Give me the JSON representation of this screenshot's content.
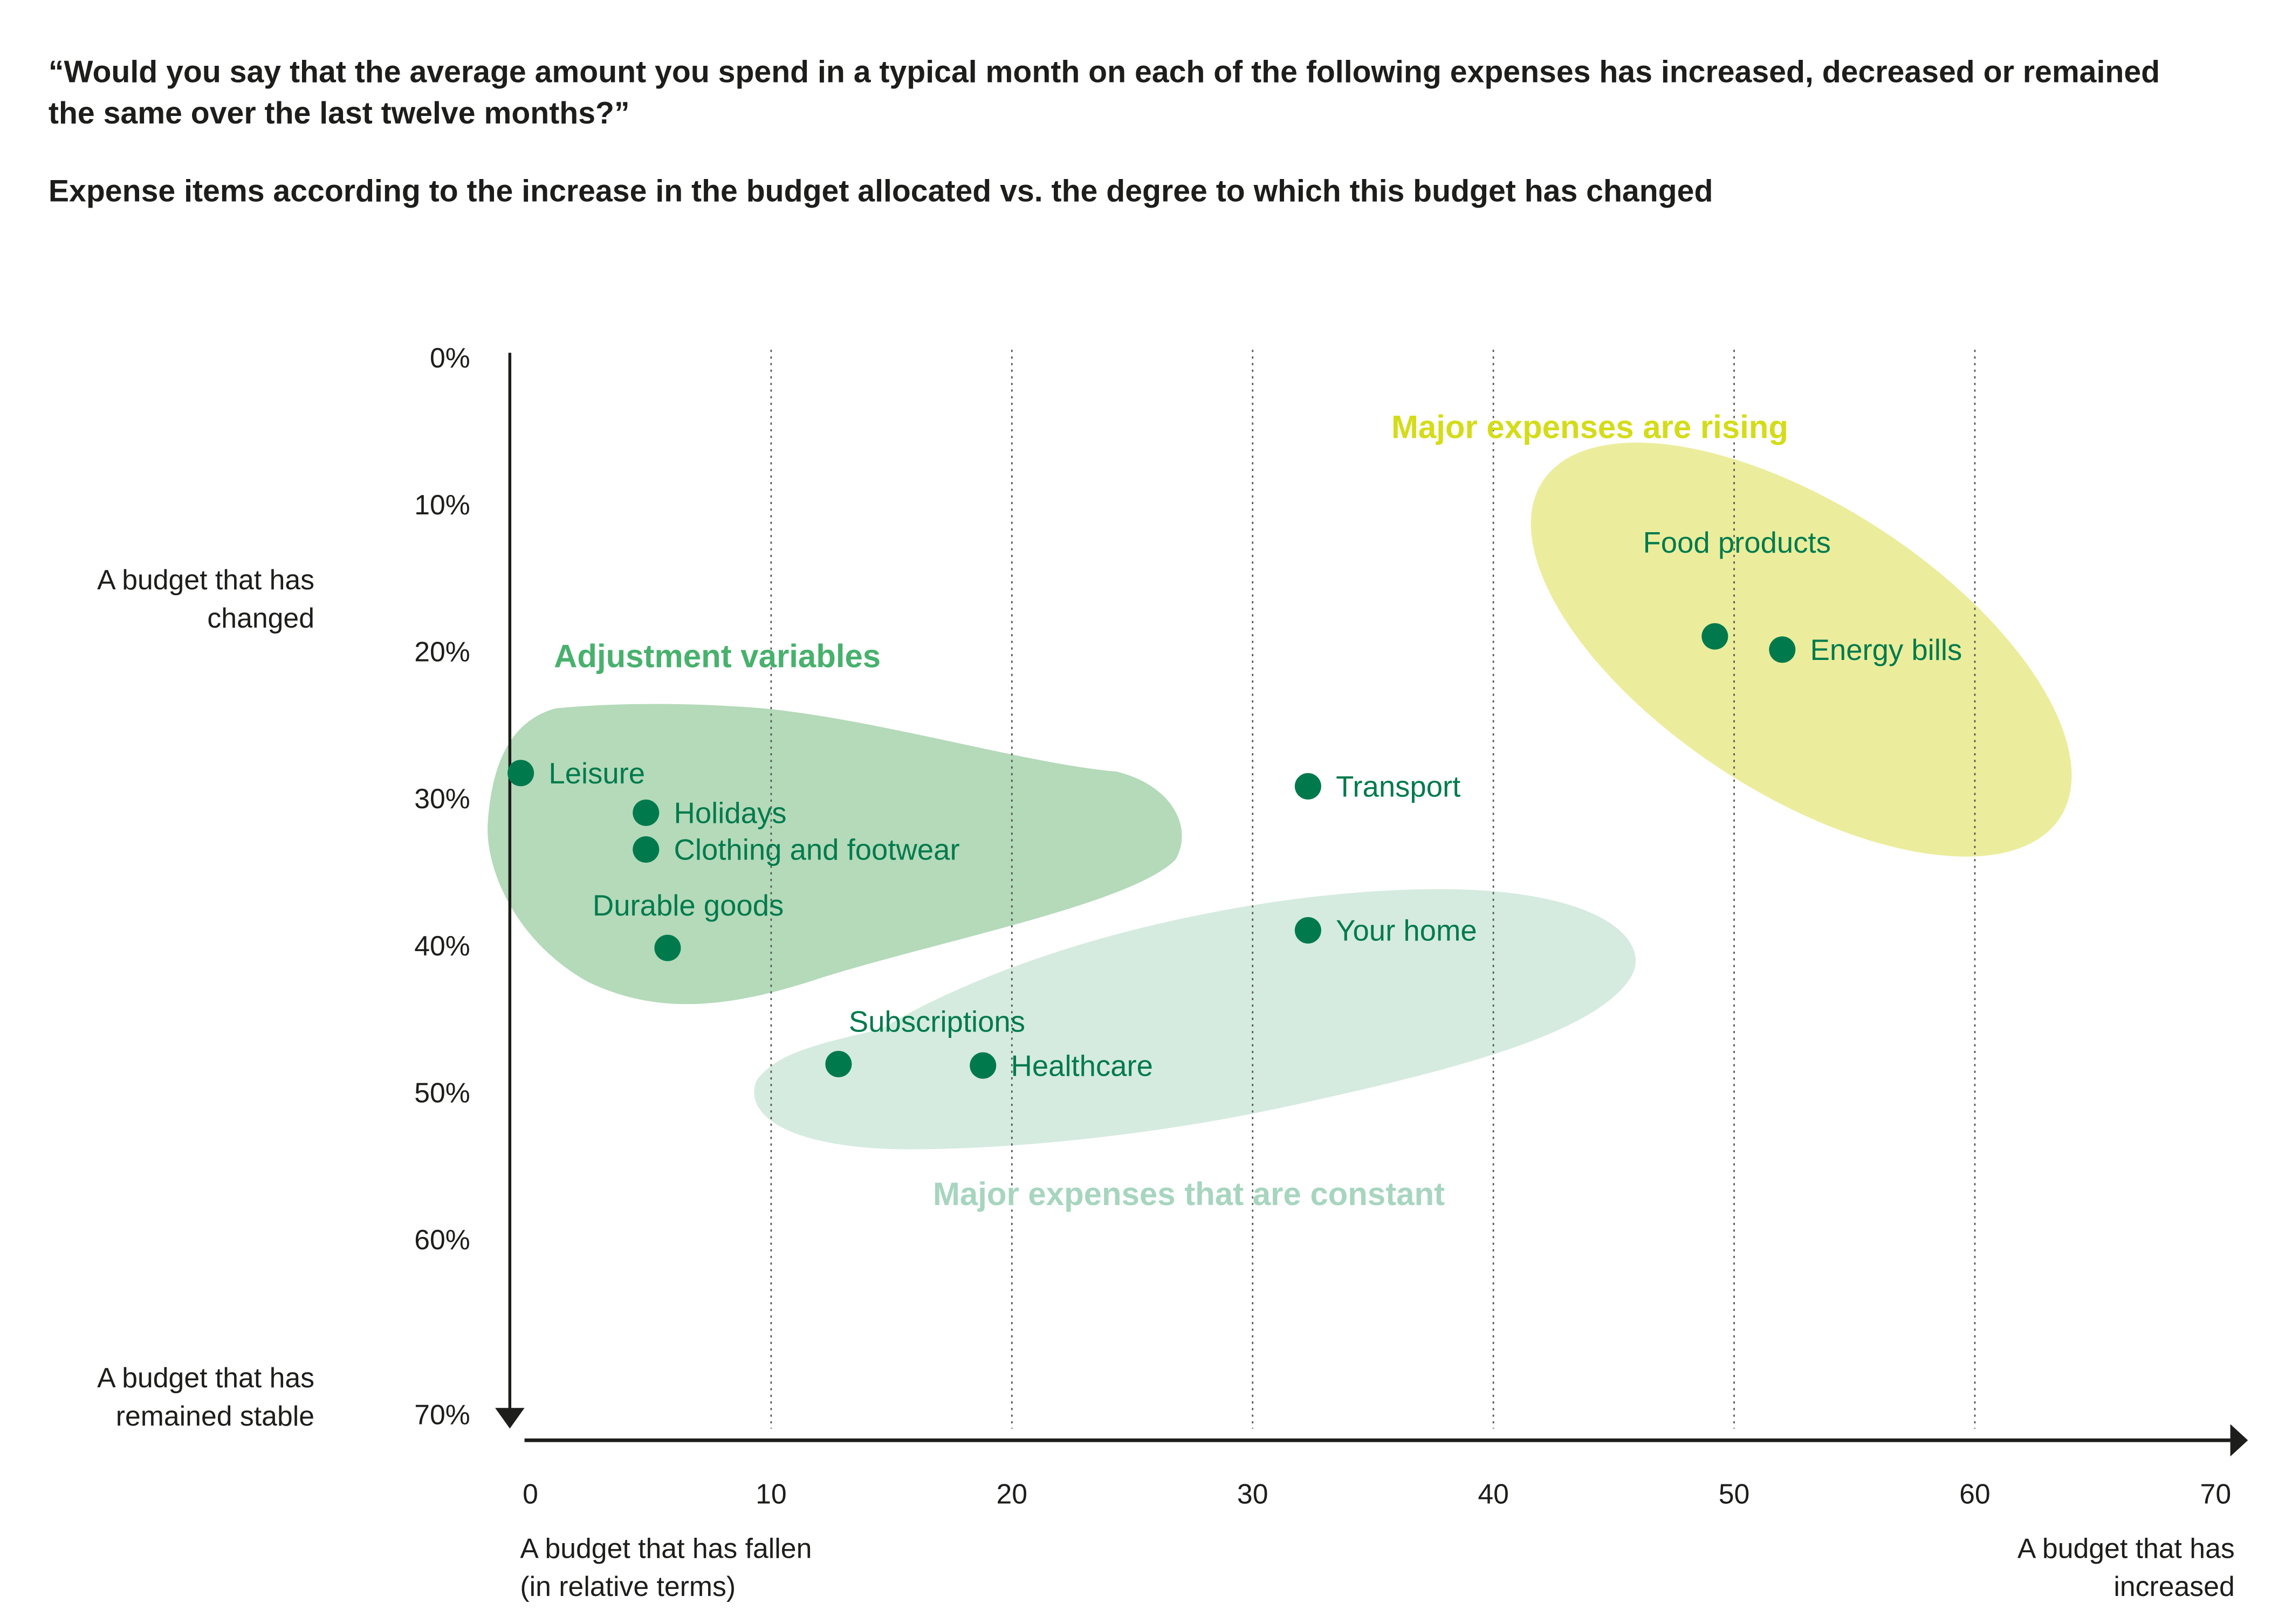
{
  "chart_data": {
    "type": "scatter",
    "title": "“Would you say that the average amount you spend in a typical month on each of the following expenses has increased, decreased or remained the same over the last twelve months?”",
    "title_lines": [
      "“Would you say that the average amount you spend in a typical month on each of the following expenses has increased, decreased or remained",
      "the same over the last twelve months?”"
    ],
    "subtitle": "Expense items according to the increase in the budget allocated vs. the degree to which this budget has changed",
    "xlabel_low": [
      "A budget that has fallen",
      "(in relative terms)"
    ],
    "xlabel_high": [
      "A budget that has",
      "increased"
    ],
    "ylabel_top": [
      "A budget that has",
      "changed"
    ],
    "ylabel_bottom": [
      "A budget that has",
      "remained stable"
    ],
    "xlim": [
      0,
      70
    ],
    "ylim": [
      0,
      70
    ],
    "y_inverted": true,
    "x_ticks": [
      "0",
      "10",
      "20",
      "30",
      "40",
      "50",
      "60",
      "70"
    ],
    "y_ticks": [
      "0%",
      "10%",
      "20%",
      "30%",
      "40%",
      "50%",
      "60%",
      "70%"
    ],
    "grid": "vertical dotted",
    "points": [
      {
        "label": "Leisure",
        "x": -0.4,
        "y": 28.3,
        "group": "Adjustment variables",
        "label_pos": "right"
      },
      {
        "label": "Holidays",
        "x": 4.8,
        "y": 31.0,
        "group": "Adjustment variables",
        "label_pos": "right"
      },
      {
        "label": "Clothing and footwear",
        "x": 4.8,
        "y": 33.5,
        "group": "Adjustment variables",
        "label_pos": "right"
      },
      {
        "label": "Durable goods",
        "x": 5.7,
        "y": 40.2,
        "group": "Adjustment variables",
        "label_pos": "above"
      },
      {
        "label": "Subscriptions",
        "x": 12.8,
        "y": 48.1,
        "group": "Major expenses that are constant",
        "label_pos": "above"
      },
      {
        "label": "Healthcare",
        "x": 18.8,
        "y": 48.2,
        "group": "Major expenses that are constant",
        "label_pos": "right"
      },
      {
        "label": "Transport",
        "x": 32.3,
        "y": 29.2,
        "group": "none",
        "label_pos": "right"
      },
      {
        "label": "Your home",
        "x": 32.3,
        "y": 39.0,
        "group": "Major expenses that are constant",
        "label_pos": "right"
      },
      {
        "label": "Food products",
        "x": 49.2,
        "y": 19.0,
        "group": "Major expenses are rising",
        "label_pos": "above"
      },
      {
        "label": "Energy bills",
        "x": 52.0,
        "y": 19.9,
        "group": "Major expenses are rising",
        "label_pos": "right"
      }
    ],
    "groups": [
      {
        "name": "Adjustment variables",
        "color": "#48b16d",
        "fill": "#b4dab9"
      },
      {
        "name": "Major expenses that are constant",
        "color": "#a7d5bf",
        "fill": "#d5ebdf"
      },
      {
        "name": "Major expenses are rising",
        "color": "#d4dc1a",
        "fill": "#ebed9c"
      }
    ],
    "point_color": "#007a4d"
  }
}
